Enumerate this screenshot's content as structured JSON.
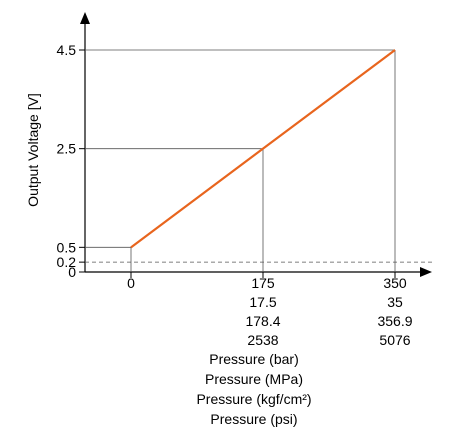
{
  "chart_data": {
    "type": "line",
    "title": "",
    "ylabel": "Output Voltage [V]",
    "xlabels": [
      "Pressure (bar)",
      "Pressure (MPa)",
      "Pressure (kgf/cm²)",
      "Pressure (psi)"
    ],
    "y_ticks": [
      "4.5",
      "2.5",
      "0.5",
      "0.2",
      "0"
    ],
    "y_tick_values": [
      4.5,
      2.5,
      0.5,
      0.2,
      0
    ],
    "x_tick_values": [
      0,
      175,
      350
    ],
    "x_tick_rows": [
      [
        "0",
        "175",
        "350"
      ],
      [
        "",
        "17.5",
        "35"
      ],
      [
        "",
        "178.4",
        "356.9"
      ],
      [
        "",
        "2538",
        "5076"
      ]
    ],
    "series": [
      {
        "x": [
          0,
          175,
          350
        ],
        "y": [
          0.5,
          2.5,
          4.5
        ],
        "color": "#e8651e"
      }
    ],
    "reference_lines": [
      {
        "orientation": "horizontal",
        "y": 0.2,
        "style": "dashed"
      }
    ],
    "xlim": [
      0,
      350
    ],
    "ylim": [
      0,
      4.5
    ],
    "grid": false
  }
}
